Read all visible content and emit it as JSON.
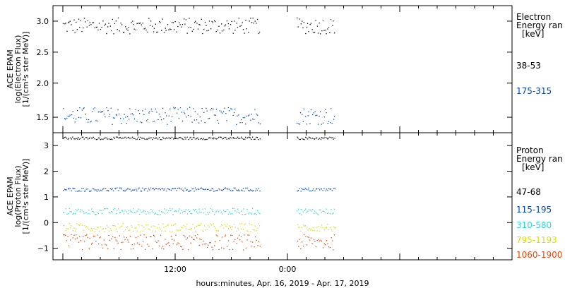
{
  "caption": "hours:minutes, Apr. 16, 2019 - Apr. 17, 2019",
  "colors": {
    "black": "#000000",
    "blue": "#0044cc",
    "cyan": "#22dddd",
    "yellow": "#dddd00",
    "orange": "#ee4400"
  },
  "chart_data": [
    {
      "type": "scatter",
      "ylabel": [
        "ACE EPAM",
        "log(Electron Flux)",
        "[1/(cm²s ster MeV)]"
      ],
      "ylim": [
        1.2,
        3.25
      ],
      "yticks": [
        "1.5",
        "2.0",
        "2.5",
        "3.0"
      ],
      "xticks": [
        "12:00",
        "0:00"
      ],
      "xlim_hours": [
        0,
        48
      ],
      "legend": {
        "line1": "Electron",
        "line2": "Energy ran",
        "unit": "[keV]"
      },
      "series": [
        {
          "name": "38-53",
          "color": "#000000",
          "mean": 2.93,
          "spread": 0.13,
          "segments": [
            [
              0,
              21
            ],
            [
              25,
              29
            ]
          ]
        },
        {
          "name": "175-315",
          "color": "#0044cc",
          "mean": 1.48,
          "spread": 0.14,
          "segments": [
            [
              0,
              21
            ],
            [
              25,
              29
            ]
          ]
        }
      ]
    },
    {
      "type": "scatter",
      "ylabel": [
        "ACE EPAM",
        "log(Proton Flux)",
        "[1/(cm²s ster MeV)]"
      ],
      "ylim": [
        -1.45,
        3.5
      ],
      "yticks": [
        "−1",
        "0",
        "1",
        "2",
        "3"
      ],
      "xticks": [
        "12:00",
        "0:00"
      ],
      "xlim_hours": [
        0,
        48
      ],
      "legend": {
        "line1": "Proton",
        "line2": "Energy ran",
        "unit": "[keV]"
      },
      "series": [
        {
          "name": "47-68",
          "color": "#000000",
          "mean": 3.3,
          "spread": 0.05,
          "segments": [
            [
              0,
              21
            ],
            [
              25,
              29
            ]
          ]
        },
        {
          "name": "115-195",
          "color": "#0044cc",
          "mean": 1.3,
          "spread": 0.07,
          "segments": [
            [
              0,
              21
            ],
            [
              25,
              29
            ]
          ]
        },
        {
          "name": "310-580",
          "color": "#22dddd",
          "mean": 0.45,
          "spread": 0.12,
          "segments": [
            [
              0,
              21
            ],
            [
              25,
              29
            ]
          ]
        },
        {
          "name": "795-1193",
          "color": "#dddd00",
          "mean": -0.18,
          "spread": 0.16,
          "segments": [
            [
              0,
              21
            ],
            [
              25,
              29
            ]
          ]
        },
        {
          "name": "1060-1900",
          "color": "#ee4400",
          "mean": -0.75,
          "spread": 0.3,
          "segments": [
            [
              0,
              21
            ],
            [
              25,
              29
            ]
          ]
        }
      ]
    }
  ]
}
